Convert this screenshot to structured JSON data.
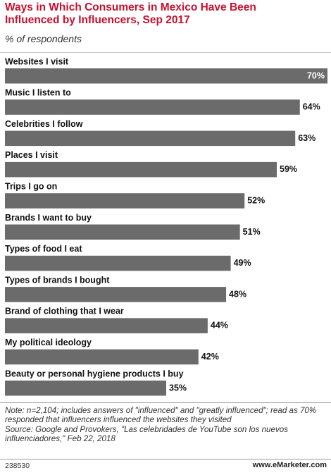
{
  "chart_data": {
    "type": "bar",
    "orientation": "horizontal",
    "title": "Ways in Which Consumers in Mexico Have Been Influenced by Influencers, Sep 2017",
    "subtitle": "% of respondents",
    "categories": [
      "Websites I visit",
      "Music I listen to",
      "Celebrities I follow",
      "Places I visit",
      "Trips I go on",
      "Brands I want to buy",
      "Types of food I eat",
      "Types of brands I bought",
      "Brand of clothing that I wear",
      "My political ideology",
      "Beauty or personal hygiene products I buy"
    ],
    "values": [
      70,
      64,
      63,
      59,
      52,
      51,
      49,
      48,
      44,
      42,
      35
    ],
    "value_labels": [
      "70%",
      "64%",
      "63%",
      "59%",
      "52%",
      "51%",
      "49%",
      "48%",
      "44%",
      "42%",
      "35%"
    ],
    "color": "#6b6b6b",
    "note": "Note: n=2,104; includes answers of \"influenced\" and \"greatly influenced\"; read as 70% responded that influencers influenced the websites they visited",
    "source": "Source: Google and Provokers, \"Las celebridades de YouTube son los nuevos influenciadores,\" Feb 22, 2018",
    "chart_id": "238530",
    "brand": "www.eMarketer.com"
  }
}
